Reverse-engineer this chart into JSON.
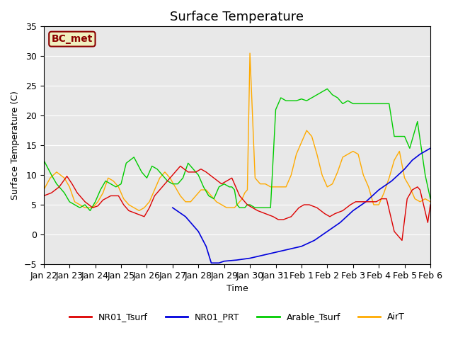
{
  "title": "Surface Temperature",
  "ylabel": "Surface Temperature (C)",
  "xlabel": "Time",
  "ylim": [
    -5,
    35
  ],
  "annotation_text": "BC_met",
  "annotation_bg": "#f0f0c0",
  "annotation_border": "#8B0000",
  "plot_bg": "#e8e8e8",
  "grid_color": "#ffffff",
  "colors": {
    "NR01_Tsurf": "#dd0000",
    "NR01_PRT": "#0000dd",
    "Arable_Tsurf": "#00cc00",
    "AirT": "#ffaa00"
  },
  "xtick_labels": [
    "Jan 22",
    "Jan 23",
    "Jan 24",
    "Jan 25",
    "Jan 26",
    "Jan 27",
    "Jan 28",
    "Jan 29",
    "Jan 30",
    "Jan 31",
    "Feb 1",
    "Feb 2",
    "Feb 3",
    "Feb 4",
    "Feb 5",
    "Feb 6"
  ],
  "NR01_Tsurf_x": [
    0,
    0.3,
    0.6,
    0.9,
    1.1,
    1.3,
    1.6,
    1.9,
    2.1,
    2.3,
    2.6,
    2.9,
    3.1,
    3.3,
    3.6,
    3.9,
    4.1,
    4.3,
    4.6,
    4.9,
    5.1,
    5.3,
    5.6,
    5.9,
    6.1,
    6.3,
    6.6,
    6.9,
    7.1,
    7.3,
    7.6,
    7.9,
    8.1,
    8.3,
    8.6,
    8.9,
    9.1,
    9.3,
    9.6,
    9.9,
    10.1,
    10.3,
    10.6,
    10.9,
    11.1,
    11.3,
    11.6,
    11.9,
    12.1,
    12.3,
    12.6,
    12.9,
    13.1,
    13.3,
    13.6,
    13.9,
    14.1,
    14.3,
    14.5,
    14.6,
    14.9,
    15.0
  ],
  "NR01_Tsurf_y": [
    6.5,
    7.0,
    8.0,
    9.8,
    8.5,
    7.0,
    5.5,
    4.5,
    4.8,
    5.8,
    6.5,
    6.5,
    5.0,
    4.0,
    3.5,
    3.0,
    4.5,
    6.5,
    8.0,
    9.5,
    10.5,
    11.5,
    10.5,
    10.5,
    11.0,
    10.5,
    9.5,
    8.5,
    9.0,
    9.5,
    6.5,
    5.0,
    4.5,
    4.0,
    3.5,
    3.0,
    2.5,
    2.5,
    3.0,
    4.5,
    5.0,
    5.0,
    4.5,
    3.5,
    3.0,
    3.5,
    4.0,
    5.0,
    5.5,
    5.5,
    5.5,
    5.5,
    6.0,
    6.0,
    0.5,
    -1.0,
    6.0,
    7.5,
    8.0,
    7.5,
    2.0,
    5.0
  ],
  "NR01_PRT_x": [
    5.0,
    5.5,
    6.0,
    6.3,
    6.5,
    6.8,
    7.0,
    7.5,
    8.0,
    8.5,
    9.0,
    9.5,
    10.0,
    10.5,
    11.0,
    11.5,
    12.0,
    12.5,
    13.0,
    13.5,
    14.0,
    14.3,
    14.6,
    15.0
  ],
  "NR01_PRT_y": [
    4.5,
    3.0,
    0.5,
    -2.0,
    -4.8,
    -4.8,
    -4.5,
    -4.3,
    -4.0,
    -3.5,
    -3.0,
    -2.5,
    -2.0,
    -1.0,
    0.5,
    2.0,
    4.0,
    5.5,
    7.5,
    9.0,
    11.0,
    12.5,
    13.5,
    14.5
  ],
  "Arable_Tsurf_x": [
    0,
    0.3,
    0.5,
    0.8,
    1.0,
    1.2,
    1.4,
    1.6,
    1.8,
    2.0,
    2.2,
    2.4,
    2.6,
    2.8,
    3.0,
    3.2,
    3.5,
    3.8,
    4.0,
    4.2,
    4.4,
    4.6,
    4.8,
    5.0,
    5.2,
    5.4,
    5.6,
    5.8,
    6.0,
    6.2,
    6.4,
    6.6,
    6.8,
    7.0,
    7.2,
    7.3,
    7.4,
    7.5,
    7.6,
    7.8,
    7.9,
    8.0,
    8.2,
    8.4,
    8.6,
    8.8,
    9.0,
    9.2,
    9.4,
    9.6,
    9.8,
    10.0,
    10.2,
    10.4,
    10.6,
    10.8,
    11.0,
    11.2,
    11.4,
    11.6,
    11.8,
    12.0,
    12.2,
    12.4,
    12.6,
    12.8,
    13.0,
    13.2,
    13.4,
    13.6,
    13.7,
    13.8,
    13.85,
    13.9,
    14.0,
    14.2,
    14.5,
    14.8,
    15.0
  ],
  "Arable_Tsurf_y": [
    12.5,
    10.0,
    8.5,
    7.0,
    5.5,
    5.0,
    4.5,
    5.0,
    4.0,
    5.5,
    7.5,
    9.0,
    8.5,
    8.0,
    8.5,
    12.0,
    13.0,
    10.5,
    9.5,
    11.5,
    11.0,
    10.0,
    9.0,
    8.5,
    8.5,
    9.5,
    12.0,
    11.0,
    10.0,
    8.0,
    6.5,
    6.0,
    8.0,
    8.5,
    8.0,
    8.0,
    7.5,
    5.0,
    4.5,
    4.5,
    5.0,
    5.0,
    4.5,
    4.5,
    4.5,
    4.5,
    21.0,
    23.0,
    22.5,
    22.5,
    22.5,
    22.8,
    22.5,
    23.0,
    23.5,
    24.0,
    24.5,
    23.5,
    23.0,
    22.0,
    22.5,
    22.0,
    22.0,
    22.0,
    22.0,
    22.0,
    22.0,
    22.0,
    22.0,
    16.5,
    16.5,
    16.5,
    16.5,
    16.5,
    16.5,
    14.5,
    19.0,
    10.0,
    6.0
  ],
  "AirT_x": [
    0,
    0.25,
    0.5,
    0.8,
    1.0,
    1.2,
    1.4,
    1.6,
    1.9,
    2.1,
    2.3,
    2.5,
    2.7,
    2.9,
    3.1,
    3.3,
    3.5,
    3.7,
    3.9,
    4.1,
    4.3,
    4.5,
    4.7,
    4.9,
    5.1,
    5.3,
    5.5,
    5.7,
    5.9,
    6.1,
    6.3,
    6.5,
    6.7,
    6.9,
    7.1,
    7.2,
    7.3,
    7.4,
    7.5,
    7.6,
    7.7,
    7.8,
    7.9,
    8.0,
    8.2,
    8.4,
    8.6,
    8.8,
    9.0,
    9.2,
    9.4,
    9.6,
    9.8,
    10.0,
    10.2,
    10.4,
    10.6,
    10.8,
    11.0,
    11.2,
    11.4,
    11.6,
    11.8,
    12.0,
    12.2,
    12.4,
    12.6,
    12.8,
    13.0,
    13.2,
    13.4,
    13.6,
    13.8,
    14.0,
    14.2,
    14.4,
    14.6,
    14.8,
    15.0
  ],
  "AirT_y": [
    7.5,
    9.5,
    10.5,
    9.5,
    8.0,
    5.5,
    5.0,
    4.5,
    4.5,
    5.5,
    7.0,
    9.5,
    9.0,
    8.0,
    6.0,
    5.0,
    4.5,
    4.0,
    4.5,
    5.5,
    7.5,
    9.5,
    10.5,
    9.5,
    8.0,
    6.5,
    5.5,
    5.5,
    6.5,
    7.5,
    7.5,
    6.5,
    5.5,
    5.0,
    4.5,
    4.5,
    4.5,
    4.5,
    5.0,
    5.5,
    6.0,
    7.0,
    7.5,
    30.5,
    9.5,
    8.5,
    8.5,
    8.0,
    8.0,
    8.0,
    8.0,
    10.0,
    13.5,
    15.5,
    17.5,
    16.5,
    13.5,
    10.0,
    8.0,
    8.5,
    10.5,
    13.0,
    13.5,
    14.0,
    13.5,
    10.0,
    8.0,
    5.0,
    5.0,
    7.0,
    9.5,
    12.5,
    14.0,
    9.5,
    8.0,
    6.0,
    5.5,
    6.0,
    5.5
  ]
}
